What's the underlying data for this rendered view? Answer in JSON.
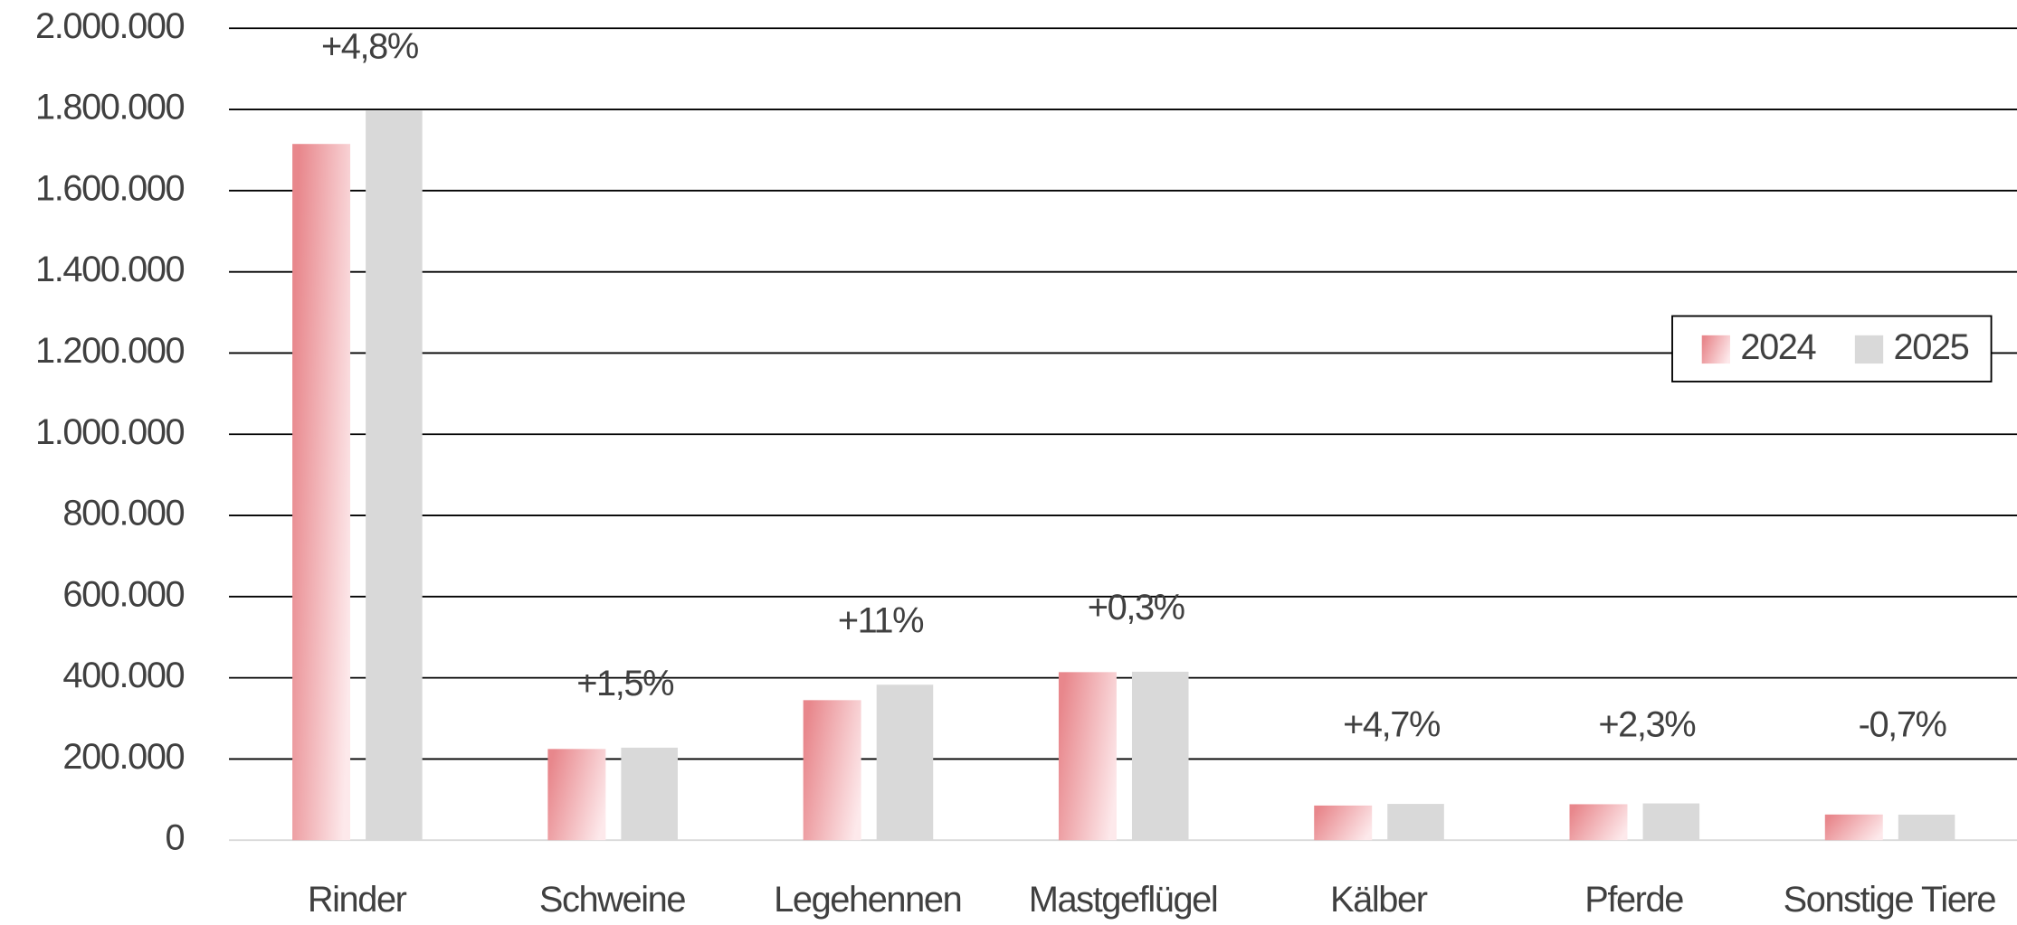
{
  "chart_data": {
    "type": "bar",
    "categories": [
      "Rinder",
      "Schweine",
      "Legehennen",
      "Mastgeflügel",
      "Kälber",
      "Pferde",
      "Sonstige Tiere"
    ],
    "series": [
      {
        "name": "2024",
        "color": "#e8878c",
        "values": [
          1715000,
          224700,
          345000,
          414000,
          85400,
          88600,
          63300
        ]
      },
      {
        "name": "2025",
        "color": "#d9d9d9",
        "values": [
          1797000,
          228000,
          383000,
          415000,
          89400,
          90600,
          62900
        ]
      }
    ],
    "annotations": [
      "+4,8%",
      "+1,5%",
      "+11%",
      "+0,3%",
      "+4,7%",
      "+2,3%",
      "-0,7%"
    ],
    "ylim": [
      0,
      2000000
    ],
    "yticks": [
      0,
      {
        "value": 200000,
        "label": "200.000"
      },
      {
        "value": 400000,
        "label": "400.000"
      },
      {
        "value": 600000,
        "label": "600.000"
      },
      {
        "value": 800000,
        "label": "800.000"
      },
      {
        "value": 1000000,
        "label": "1.000.000"
      },
      {
        "value": 1200000,
        "label": "1.200.000"
      },
      {
        "value": 1400000,
        "label": "1.400.000"
      },
      {
        "value": 1600000,
        "label": "1.600.000"
      },
      {
        "value": 1800000,
        "label": "1.800.000"
      },
      {
        "value": 2000000,
        "label": "2.000.000"
      }
    ],
    "grid": true,
    "legend": "right"
  }
}
